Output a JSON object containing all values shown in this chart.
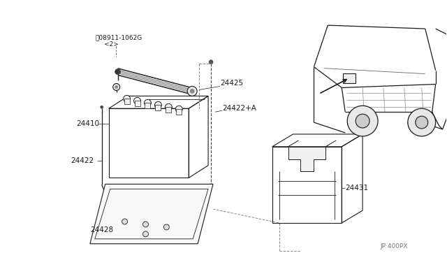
{
  "background_color": "#ffffff",
  "line_color": "#1a1a1a",
  "fig_width": 6.4,
  "fig_height": 3.72,
  "dpi": 100,
  "labels": {
    "part_number_top": "ⓝ08911-1062G",
    "part_number_top2": "<2>",
    "label_24425": "24425",
    "label_24422A": "24422+A",
    "label_24410": "24410",
    "label_24422": "24422",
    "label_24428": "24428",
    "label_24431": "24431",
    "footnote": "JP·400PX"
  }
}
